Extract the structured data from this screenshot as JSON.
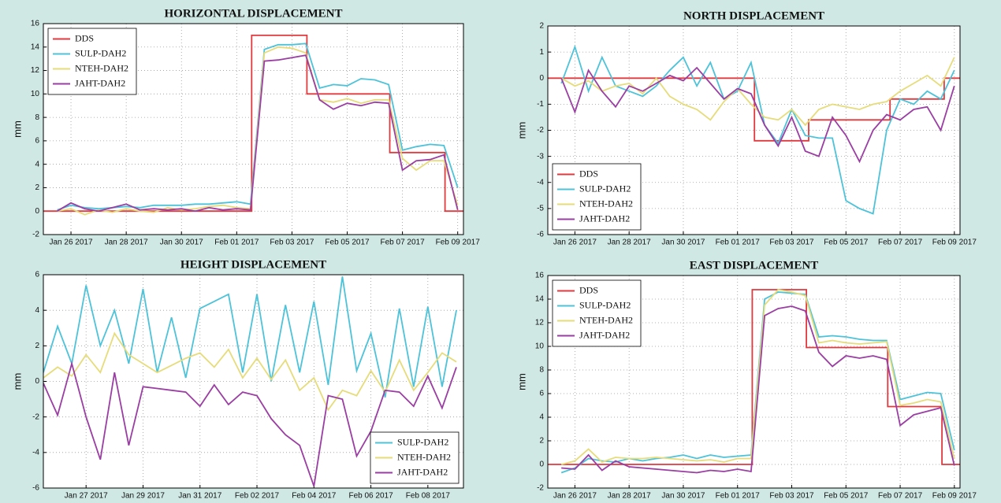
{
  "chart_data": [
    {
      "type": "line",
      "title": "HORIZONTAL DISPLACEMENT",
      "y_label": "mm",
      "xlim": [
        "2017-01-25T00:00",
        "2017-02-09T05:00"
      ],
      "ylim": [
        -2,
        16
      ],
      "yticks": [
        -2,
        0,
        2,
        4,
        6,
        8,
        10,
        12,
        14,
        16
      ],
      "xticks": [
        {
          "value": "2017-01-26T00:00",
          "label": "Jan 26 2017"
        },
        {
          "value": "2017-01-28T00:00",
          "label": "Jan 28 2017"
        },
        {
          "value": "2017-01-30T00:00",
          "label": "Jan 30 2017"
        },
        {
          "value": "2017-02-01T00:00",
          "label": "Feb 01 2017"
        },
        {
          "value": "2017-02-03T00:00",
          "label": "Feb 03 2017"
        },
        {
          "value": "2017-02-05T00:00",
          "label": "Feb 05 2017"
        },
        {
          "value": "2017-02-07T00:00",
          "label": "Feb 07 2017"
        },
        {
          "value": "2017-02-09T00:00",
          "label": "Feb 09 2017"
        }
      ],
      "grid": true,
      "legend": "upper left",
      "x": [
        "2017-01-25T12:00",
        "2017-01-26T00:00",
        "2017-01-26T12:00",
        "2017-01-27T00:00",
        "2017-01-27T12:00",
        "2017-01-28T00:00",
        "2017-01-28T12:00",
        "2017-01-29T00:00",
        "2017-01-29T12:00",
        "2017-01-30T00:00",
        "2017-01-30T12:00",
        "2017-01-31T00:00",
        "2017-01-31T12:00",
        "2017-02-01T00:00",
        "2017-02-01T12:00",
        "2017-02-02T00:00",
        "2017-02-02T12:00",
        "2017-02-03T00:00",
        "2017-02-03T12:00",
        "2017-02-04T00:00",
        "2017-02-04T12:00",
        "2017-02-05T00:00",
        "2017-02-05T12:00",
        "2017-02-06T00:00",
        "2017-02-06T12:00",
        "2017-02-07T00:00",
        "2017-02-07T12:00",
        "2017-02-08T00:00",
        "2017-02-08T12:00",
        "2017-02-09T00:00"
      ],
      "series": [
        {
          "name": "DDS",
          "color": "#e0393e",
          "x": [
            "2017-01-25T00:00",
            "2017-02-01T13:00",
            "2017-02-01T13:00",
            "2017-02-03T13:00",
            "2017-02-03T13:00",
            "2017-02-06T13:00",
            "2017-02-06T13:00",
            "2017-02-08T13:00",
            "2017-02-08T13:00",
            "2017-02-09T05:00"
          ],
          "values": [
            0,
            0,
            15,
            15,
            10,
            10,
            5,
            5,
            0,
            0
          ]
        },
        {
          "name": "SULP-DAH2",
          "color": "#4cc3d9",
          "values": [
            0.1,
            0.5,
            0.3,
            0.2,
            0.3,
            0.4,
            0.3,
            0.5,
            0.5,
            0.5,
            0.6,
            0.6,
            0.7,
            0.8,
            0.6,
            13.8,
            14.2,
            14.2,
            14.3,
            10.5,
            10.8,
            10.7,
            11.3,
            11.2,
            10.8,
            5.2,
            5.5,
            5.7,
            5.6,
            2.0
          ]
        },
        {
          "name": "NTEH-DAH2",
          "color": "#e6dc7a",
          "values": [
            0,
            0.2,
            -0.3,
            0.1,
            -0.1,
            0.2,
            0,
            -0.1,
            0.3,
            0.1,
            0.2,
            0.4,
            0.5,
            0.3,
            0.2,
            13.5,
            14.0,
            13.9,
            13.5,
            9.5,
            9.3,
            9.6,
            9.2,
            9.5,
            9.5,
            4.5,
            3.5,
            4.3,
            4.3,
            0.5
          ]
        },
        {
          "name": "JAHT-DAH2",
          "color": "#9b3ea3",
          "values": [
            0,
            0.7,
            0.2,
            0,
            0.3,
            0.6,
            0.1,
            0.2,
            0.1,
            0.2,
            0,
            0.3,
            0.1,
            0.2,
            0.1,
            12.8,
            12.9,
            13.1,
            13.3,
            9.5,
            8.7,
            9.2,
            9.0,
            9.3,
            9.2,
            3.5,
            4.3,
            4.4,
            4.8,
            0.1
          ]
        }
      ]
    },
    {
      "type": "line",
      "title": "NORTH DISPLACEMENT",
      "y_label": "mm",
      "xlim": [
        "2017-01-25T00:00",
        "2017-02-09T05:00"
      ],
      "ylim": [
        -6,
        2
      ],
      "yticks": [
        -6,
        -5,
        -4,
        -3,
        -2,
        -1,
        0,
        1,
        2
      ],
      "xticks": [
        {
          "value": "2017-01-26T00:00",
          "label": "Jan 26 2017"
        },
        {
          "value": "2017-01-28T00:00",
          "label": "Jan 28 2017"
        },
        {
          "value": "2017-01-30T00:00",
          "label": "Jan 30 2017"
        },
        {
          "value": "2017-02-01T00:00",
          "label": "Feb 01 2017"
        },
        {
          "value": "2017-02-03T00:00",
          "label": "Feb 03 2017"
        },
        {
          "value": "2017-02-05T00:00",
          "label": "Feb 05 2017"
        },
        {
          "value": "2017-02-07T00:00",
          "label": "Feb 07 2017"
        },
        {
          "value": "2017-02-09T00:00",
          "label": "Feb 09 2017"
        }
      ],
      "grid": true,
      "legend": "lower left",
      "x": [
        "2017-01-25T12:00",
        "2017-01-26T00:00",
        "2017-01-26T12:00",
        "2017-01-27T00:00",
        "2017-01-27T12:00",
        "2017-01-28T00:00",
        "2017-01-28T12:00",
        "2017-01-29T00:00",
        "2017-01-29T12:00",
        "2017-01-30T00:00",
        "2017-01-30T12:00",
        "2017-01-31T00:00",
        "2017-01-31T12:00",
        "2017-02-01T00:00",
        "2017-02-01T12:00",
        "2017-02-02T00:00",
        "2017-02-02T12:00",
        "2017-02-03T00:00",
        "2017-02-03T12:00",
        "2017-02-04T00:00",
        "2017-02-04T12:00",
        "2017-02-05T00:00",
        "2017-02-05T12:00",
        "2017-02-06T00:00",
        "2017-02-06T12:00",
        "2017-02-07T00:00",
        "2017-02-07T12:00",
        "2017-02-08T00:00",
        "2017-02-08T12:00",
        "2017-02-09T00:00"
      ],
      "series": [
        {
          "name": "DDS",
          "color": "#e0393e",
          "x": [
            "2017-01-25T00:00",
            "2017-02-01T15:00",
            "2017-02-01T15:00",
            "2017-02-03T15:00",
            "2017-02-03T15:00",
            "2017-02-06T15:00",
            "2017-02-06T15:00",
            "2017-02-08T15:00",
            "2017-02-08T15:00",
            "2017-02-09T05:00"
          ],
          "values": [
            0,
            0,
            -2.4,
            -2.4,
            -1.6,
            -1.6,
            -0.8,
            -0.8,
            0,
            0
          ]
        },
        {
          "name": "SULP-DAH2",
          "color": "#4cc3d9",
          "values": [
            -0.2,
            1.2,
            -0.5,
            0.8,
            -0.3,
            -0.5,
            -0.7,
            -0.3,
            0.3,
            0.8,
            -0.3,
            0.6,
            -0.8,
            -0.5,
            0.6,
            -1.8,
            -2.5,
            -1.2,
            -2.2,
            -2.3,
            -2.3,
            -4.7,
            -5.0,
            -5.2,
            -2.0,
            -0.8,
            -1.0,
            -0.5,
            -0.8,
            0.3
          ]
        },
        {
          "name": "NTEH-DAH2",
          "color": "#e6dc7a",
          "values": [
            0,
            -0.3,
            -0.1,
            -0.5,
            -0.3,
            -0.2,
            -0.6,
            0,
            -0.7,
            -1.0,
            -1.2,
            -1.6,
            -0.9,
            -0.4,
            -1.0,
            -1.5,
            -1.6,
            -1.2,
            -1.8,
            -1.2,
            -1.0,
            -1.1,
            -1.2,
            -1.0,
            -0.9,
            -0.5,
            -0.2,
            0.1,
            -0.3,
            0.8
          ]
        },
        {
          "name": "JAHT-DAH2",
          "color": "#9b3ea3",
          "values": [
            0,
            -1.3,
            0.3,
            -0.5,
            -1.1,
            -0.3,
            -0.5,
            -0.2,
            0.1,
            -0.1,
            0.4,
            -0.2,
            -0.8,
            -0.4,
            -0.6,
            -1.8,
            -2.6,
            -1.5,
            -2.8,
            -3.0,
            -1.5,
            -2.2,
            -3.2,
            -2.0,
            -1.4,
            -1.6,
            -1.2,
            -1.1,
            -2.0,
            -0.3
          ]
        }
      ]
    },
    {
      "type": "line",
      "title": "HEIGHT DISPLACEMENT",
      "y_label": "mm",
      "xlim": [
        "2017-01-25T12:00",
        "2017-02-09T06:00"
      ],
      "ylim": [
        -6,
        6
      ],
      "yticks": [
        -6,
        -4,
        -2,
        0,
        2,
        4,
        6
      ],
      "xticks": [
        {
          "value": "2017-01-27T00:00",
          "label": "Jan 27 2017"
        },
        {
          "value": "2017-01-29T00:00",
          "label": "Jan 29 2017"
        },
        {
          "value": "2017-01-31T00:00",
          "label": "Jan 31 2017"
        },
        {
          "value": "2017-02-02T00:00",
          "label": "Feb 02 2017"
        },
        {
          "value": "2017-02-04T00:00",
          "label": "Feb 04 2017"
        },
        {
          "value": "2017-02-06T00:00",
          "label": "Feb 06 2017"
        },
        {
          "value": "2017-02-08T00:00",
          "label": "Feb 08 2017"
        }
      ],
      "grid": true,
      "legend": "lower right",
      "x": [
        "2017-01-25T12:00",
        "2017-01-26T00:00",
        "2017-01-26T12:00",
        "2017-01-27T00:00",
        "2017-01-27T12:00",
        "2017-01-28T00:00",
        "2017-01-28T12:00",
        "2017-01-29T00:00",
        "2017-01-29T12:00",
        "2017-01-30T00:00",
        "2017-01-30T12:00",
        "2017-01-31T00:00",
        "2017-01-31T12:00",
        "2017-02-01T00:00",
        "2017-02-01T12:00",
        "2017-02-02T00:00",
        "2017-02-02T12:00",
        "2017-02-03T00:00",
        "2017-02-03T12:00",
        "2017-02-04T00:00",
        "2017-02-04T12:00",
        "2017-02-05T00:00",
        "2017-02-05T12:00",
        "2017-02-06T00:00",
        "2017-02-06T12:00",
        "2017-02-07T00:00",
        "2017-02-07T12:00",
        "2017-02-08T00:00",
        "2017-02-08T12:00",
        "2017-02-09T00:00"
      ],
      "series": [
        {
          "name": "SULP-DAH2",
          "color": "#4cc3d9",
          "values": [
            0.5,
            3.1,
            1.0,
            5.4,
            2.0,
            4.0,
            1.0,
            5.2,
            0.5,
            3.6,
            0.2,
            4.1,
            4.5,
            4.9,
            0.5,
            4.9,
            0.0,
            4.3,
            0.5,
            4.5,
            -0.2,
            5.9,
            0.6,
            2.7,
            -0.9,
            4.1,
            -0.3,
            4.2,
            -0.3,
            4.0
          ]
        },
        {
          "name": "NTEH-DAH2",
          "color": "#e6dc7a",
          "values": [
            0.2,
            0.8,
            0.3,
            1.5,
            0.5,
            2.7,
            1.5,
            1.0,
            0.5,
            0.9,
            1.3,
            1.6,
            0.8,
            1.8,
            0.2,
            1.3,
            0.1,
            1.2,
            -0.5,
            0.2,
            -1.6,
            -0.5,
            -0.8,
            0.6,
            -0.6,
            1.2,
            -0.5,
            0.5,
            1.6,
            1.1
          ]
        },
        {
          "name": "JAHT-DAH2",
          "color": "#9b3ea3",
          "values": [
            -0.1,
            -1.9,
            1.0,
            -2.0,
            -4.4,
            0.5,
            -3.6,
            -0.3,
            -0.4,
            -0.5,
            -0.6,
            -1.4,
            -0.2,
            -1.3,
            -0.6,
            -0.8,
            -2.1,
            -3.0,
            -3.6,
            -5.9,
            -0.8,
            -1.0,
            -4.2,
            -2.8,
            -0.5,
            -0.6,
            -1.4,
            0.3,
            -1.5,
            0.8
          ]
        }
      ]
    },
    {
      "type": "line",
      "title": "EAST DISPLACEMENT",
      "y_label": "mm",
      "xlim": [
        "2017-01-25T00:00",
        "2017-02-09T05:00"
      ],
      "ylim": [
        -2,
        16
      ],
      "yticks": [
        -2,
        0,
        2,
        4,
        6,
        8,
        10,
        12,
        14,
        16
      ],
      "xticks": [
        {
          "value": "2017-01-26T00:00",
          "label": "Jan 26 2017"
        },
        {
          "value": "2017-01-28T00:00",
          "label": "Jan 28 2017"
        },
        {
          "value": "2017-01-30T00:00",
          "label": "Jan 30 2017"
        },
        {
          "value": "2017-02-01T00:00",
          "label": "Feb 01 2017"
        },
        {
          "value": "2017-02-03T00:00",
          "label": "Feb 03 2017"
        },
        {
          "value": "2017-02-05T00:00",
          "label": "Feb 05 2017"
        },
        {
          "value": "2017-02-07T00:00",
          "label": "Feb 07 2017"
        },
        {
          "value": "2017-02-09T00:00",
          "label": "Feb 09 2017"
        }
      ],
      "grid": true,
      "legend": "upper left",
      "x": [
        "2017-01-25T12:00",
        "2017-01-26T00:00",
        "2017-01-26T12:00",
        "2017-01-27T00:00",
        "2017-01-27T12:00",
        "2017-01-28T00:00",
        "2017-01-28T12:00",
        "2017-01-29T00:00",
        "2017-01-29T12:00",
        "2017-01-30T00:00",
        "2017-01-30T12:00",
        "2017-01-31T00:00",
        "2017-01-31T12:00",
        "2017-02-01T00:00",
        "2017-02-01T12:00",
        "2017-02-02T00:00",
        "2017-02-02T12:00",
        "2017-02-03T00:00",
        "2017-02-03T12:00",
        "2017-02-04T00:00",
        "2017-02-04T12:00",
        "2017-02-05T00:00",
        "2017-02-05T12:00",
        "2017-02-06T00:00",
        "2017-02-06T12:00",
        "2017-02-07T00:00",
        "2017-02-07T12:00",
        "2017-02-08T00:00",
        "2017-02-08T12:00",
        "2017-02-09T00:00"
      ],
      "series": [
        {
          "name": "DDS",
          "color": "#e0393e",
          "x": [
            "2017-01-25T00:00",
            "2017-02-01T13:00",
            "2017-02-01T13:00",
            "2017-02-03T13:00",
            "2017-02-03T13:00",
            "2017-02-06T13:00",
            "2017-02-06T13:00",
            "2017-02-08T13:00",
            "2017-02-08T13:00",
            "2017-02-09T05:00"
          ],
          "values": [
            0,
            0,
            14.8,
            14.8,
            9.9,
            9.9,
            4.9,
            4.9,
            0,
            0
          ]
        },
        {
          "name": "SULP-DAH2",
          "color": "#4cc3d9",
          "values": [
            -0.7,
            -0.3,
            0.5,
            0.3,
            0.2,
            0.5,
            0.3,
            0.5,
            0.6,
            0.8,
            0.5,
            0.8,
            0.6,
            0.7,
            0.8,
            14.0,
            14.6,
            14.5,
            14.4,
            10.8,
            10.9,
            10.8,
            10.6,
            10.5,
            10.5,
            5.5,
            5.8,
            6.1,
            6.0,
            1.2
          ]
        },
        {
          "name": "NTEH-DAH2",
          "color": "#e6dc7a",
          "values": [
            0,
            0.3,
            1.3,
            0.2,
            0.6,
            0.5,
            0.5,
            0.6,
            0.5,
            0.4,
            0.3,
            0.4,
            0.2,
            0.5,
            0.5,
            13.5,
            14.8,
            14.6,
            14.3,
            10.3,
            10.5,
            10.3,
            10.2,
            10.3,
            10.4,
            5.0,
            5.2,
            5.5,
            5.3,
            0.5
          ]
        },
        {
          "name": "JAHT-DAH2",
          "color": "#9b3ea3",
          "values": [
            -0.3,
            -0.4,
            0.8,
            -0.5,
            0.3,
            -0.2,
            -0.3,
            -0.4,
            -0.5,
            -0.6,
            -0.7,
            -0.5,
            -0.6,
            -0.4,
            -0.6,
            12.6,
            13.2,
            13.4,
            13.0,
            9.5,
            8.3,
            9.2,
            9.0,
            9.2,
            8.9,
            3.3,
            4.2,
            4.5,
            4.8,
            -0.1
          ]
        }
      ]
    }
  ]
}
